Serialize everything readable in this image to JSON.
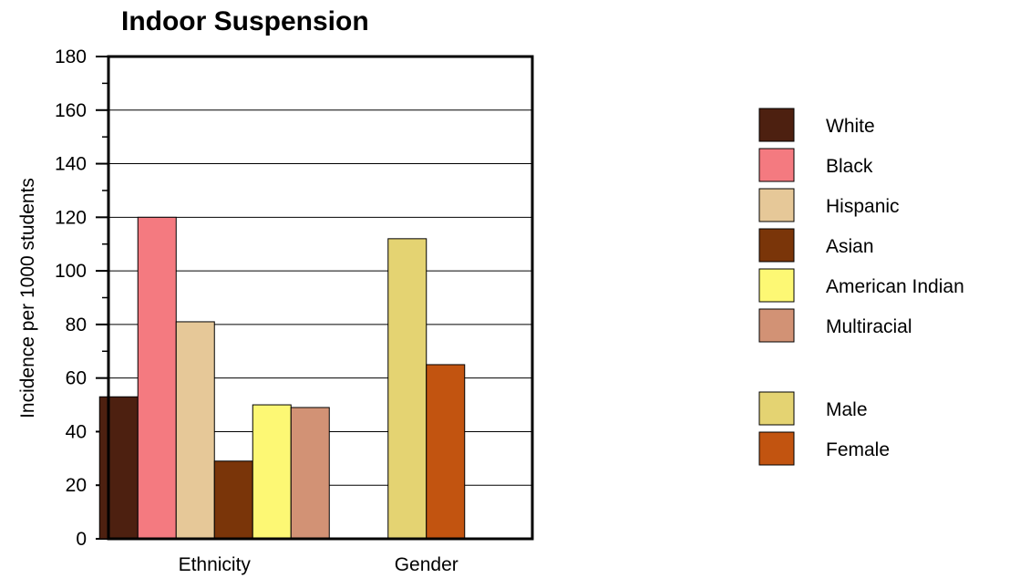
{
  "chart_data": {
    "type": "bar",
    "title": "Indoor Suspension",
    "ylabel": "Incidence per 1000 students",
    "xlabel": "",
    "ylim": [
      0,
      180
    ],
    "y_ticks": [
      0,
      20,
      40,
      60,
      80,
      100,
      120,
      140,
      160,
      180
    ],
    "grid": true,
    "legend_position": "right",
    "groups": [
      {
        "label": "Ethnicity",
        "bars": [
          {
            "series": "White",
            "value": 53
          },
          {
            "series": "Black",
            "value": 120
          },
          {
            "series": "Hispanic",
            "value": 81
          },
          {
            "series": "Asian",
            "value": 29
          },
          {
            "series": "American Indian",
            "value": 50
          },
          {
            "series": "Multiracial",
            "value": 49
          }
        ]
      },
      {
        "label": "Gender",
        "bars": [
          {
            "series": "Male",
            "value": 112
          },
          {
            "series": "Female",
            "value": 65
          }
        ]
      }
    ],
    "series": [
      {
        "name": "White",
        "color": "#4d2010"
      },
      {
        "name": "Black",
        "color": "#f47a80"
      },
      {
        "name": "Hispanic",
        "color": "#e6c898"
      },
      {
        "name": "Asian",
        "color": "#7a3509"
      },
      {
        "name": "American Indian",
        "color": "#fdf874"
      },
      {
        "name": "Multiracial",
        "color": "#d29275"
      },
      {
        "name": "Male",
        "color": "#e4d372"
      },
      {
        "name": "Female",
        "color": "#c25410"
      }
    ],
    "legend": [
      [
        "White",
        "Black",
        "Hispanic",
        "Asian",
        "American Indian",
        "Multiracial"
      ],
      [
        "Male",
        "Female"
      ]
    ]
  }
}
